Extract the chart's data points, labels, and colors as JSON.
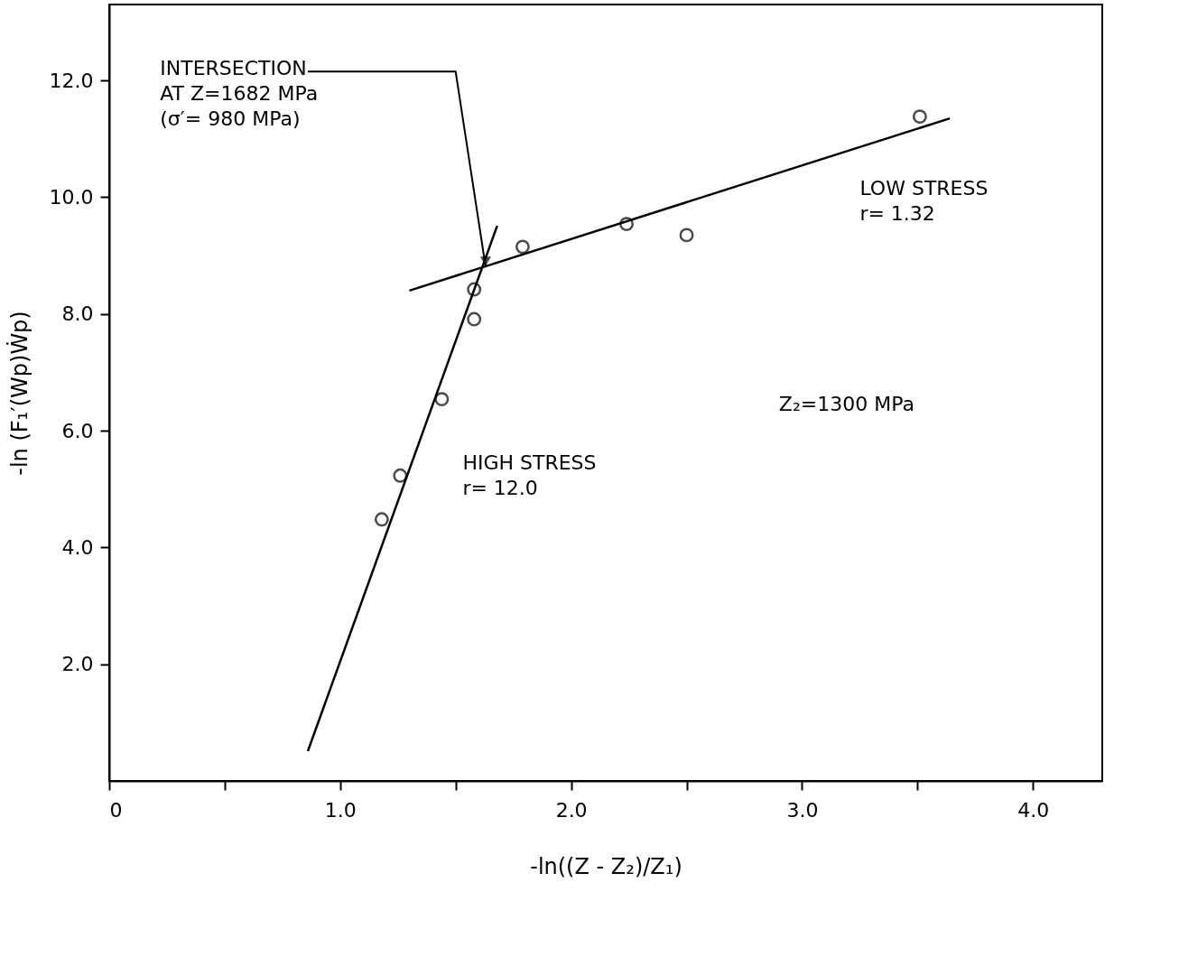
{
  "chart_data": {
    "type": "scatter",
    "xlabel": "-ln((Z - Z₂)/Z₁)",
    "ylabel": "-ln (F₁′(Wp)Ẇp)",
    "xlim": [
      0,
      4.3
    ],
    "ylim": [
      0,
      13.3
    ],
    "xticks": [
      {
        "value": 0,
        "label": "0"
      },
      {
        "value": 0.5,
        "label": null
      },
      {
        "value": 1,
        "label": "1.0"
      },
      {
        "value": 1.5,
        "label": null
      },
      {
        "value": 2,
        "label": "2.0"
      },
      {
        "value": 2.5,
        "label": null
      },
      {
        "value": 3,
        "label": "3.0"
      },
      {
        "value": 3.5,
        "label": null
      },
      {
        "value": 4,
        "label": "4.0"
      }
    ],
    "yticks": [
      {
        "value": 2,
        "label": "2.0"
      },
      {
        "value": 4,
        "label": "4.0"
      },
      {
        "value": 6,
        "label": "6.0"
      },
      {
        "value": 8,
        "label": "8.0"
      },
      {
        "value": 10,
        "label": "10.0"
      },
      {
        "value": 12,
        "label": "12.0"
      }
    ],
    "grid": false,
    "series": [
      {
        "color": "#000000",
        "marker": "circle",
        "x": [
          1.18,
          1.26,
          1.44,
          1.58,
          1.58,
          1.79,
          2.24,
          2.5,
          3.51
        ],
        "values": [
          4.48,
          5.23,
          6.54,
          7.91,
          8.42,
          9.15,
          9.54,
          9.35,
          11.38
        ]
      },
      {
        "type": "line",
        "color": "#000000",
        "line_style": "solid",
        "x": [
          0.86,
          1.68
        ],
        "values": [
          0.51,
          9.51
        ]
      },
      {
        "type": "line",
        "color": "#000000",
        "line_style": "solid",
        "x": [
          1.3,
          3.64
        ],
        "values": [
          8.4,
          11.35
        ]
      }
    ],
    "annotations": [
      {
        "text": "INTERSECTION\nAT  Z=1682 MPa\n(σ′= 980 MPa)",
        "x": 1.63,
        "y": 8.8
      },
      "LOW STRESS\nr= 1.32",
      "Z₂=1300 MPa",
      "HIGH STRESS\nr= 12.0"
    ]
  }
}
